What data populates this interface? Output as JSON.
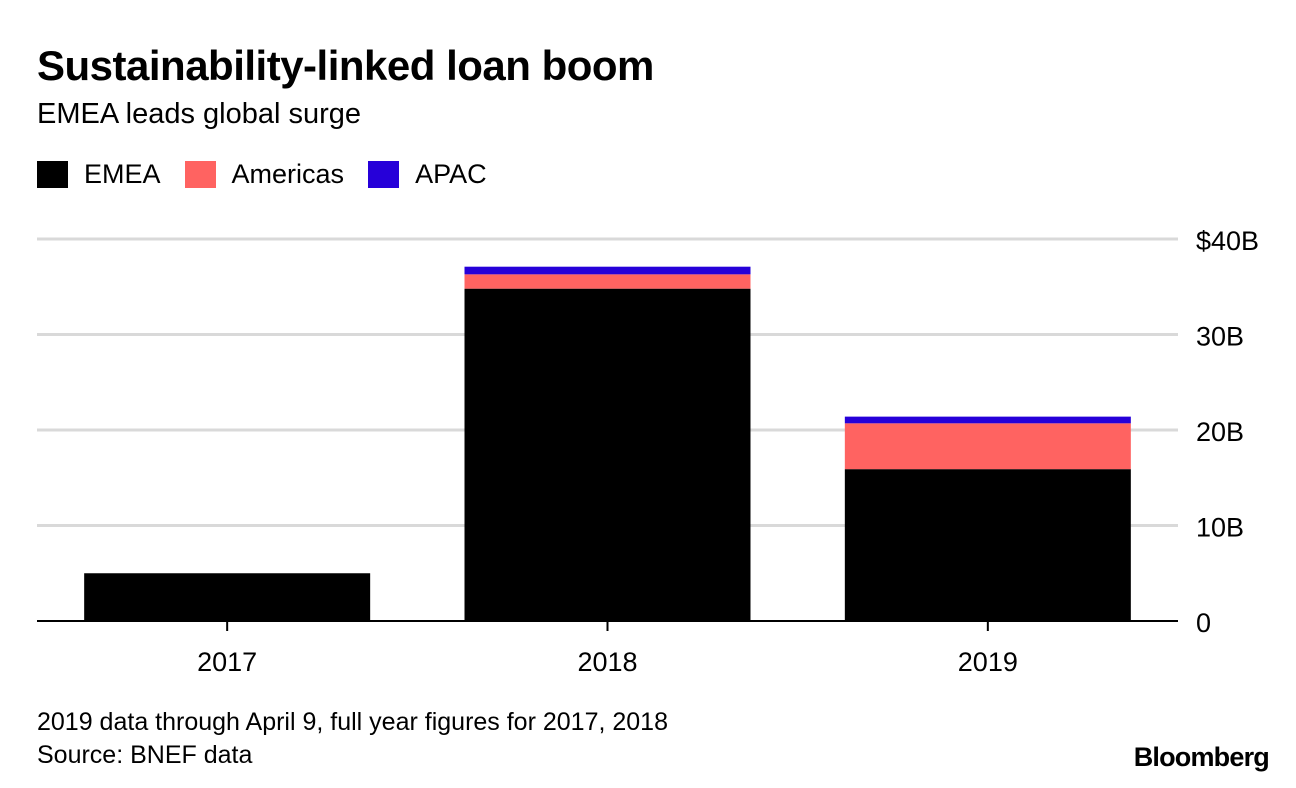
{
  "colors": {
    "emea": "#000000",
    "americas": "#ff6361",
    "apac": "#2600d9",
    "grid": "#d9d9d9",
    "axis": "#000000"
  },
  "footer": {
    "note": "2019 data through April 9, full year figures for 2017, 2018",
    "source": "Source: BNEF data",
    "brand": "Bloomberg"
  },
  "chart_data": {
    "type": "bar",
    "stacked": true,
    "title": "Sustainability-linked loan boom",
    "subtitle": "EMEA leads global surge",
    "categories": [
      "2017",
      "2018",
      "2019"
    ],
    "series": [
      {
        "name": "EMEA",
        "color": "#000000",
        "values": [
          5.0,
          34.8,
          15.9
        ]
      },
      {
        "name": "Americas",
        "color": "#ff6361",
        "values": [
          0.0,
          1.5,
          4.8
        ]
      },
      {
        "name": "APAC",
        "color": "#2600d9",
        "values": [
          0.0,
          0.8,
          0.7
        ]
      }
    ],
    "ylim": [
      0,
      40
    ],
    "yticks": [
      0,
      10,
      20,
      30,
      40
    ],
    "ytick_labels": [
      "0",
      "10B",
      "20B",
      "30B",
      "$40B"
    ],
    "y_axis_position": "right",
    "grid": true,
    "legend_position": "top-left"
  }
}
